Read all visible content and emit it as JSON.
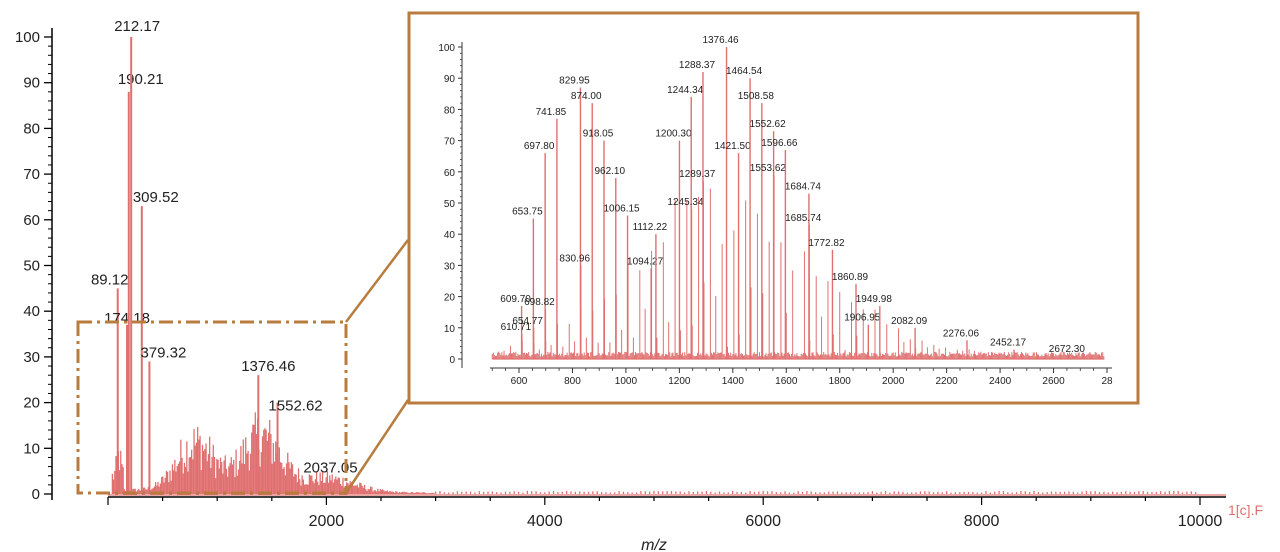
{
  "chart_data": [
    {
      "type": "line",
      "role": "main-spectrum",
      "title": "",
      "xlabel": "m/z",
      "ylabel": "",
      "xlim": [
        0,
        10000
      ],
      "ylim": [
        0,
        100
      ],
      "x_ticks": [
        "2000",
        "4000",
        "6000",
        "8000",
        "10000"
      ],
      "y_ticks": [
        "0",
        "10",
        "20",
        "30",
        "40",
        "50",
        "60",
        "70",
        "80",
        "90",
        "100"
      ],
      "trace_label": "1[c].F",
      "color": "#e07070",
      "grid": false,
      "peaks": [
        {
          "x": 89.12,
          "y": 45,
          "label": "89.12"
        },
        {
          "x": 174.18,
          "y": 37,
          "label": "174.18"
        },
        {
          "x": 190.21,
          "y": 88,
          "label": "190.21"
        },
        {
          "x": 212.17,
          "y": 100,
          "label": "212.17"
        },
        {
          "x": 309.52,
          "y": 63,
          "label": "309.52"
        },
        {
          "x": 379.32,
          "y": 29,
          "label": "379.32"
        },
        {
          "x": 1376.46,
          "y": 26,
          "label": "1376.46"
        },
        {
          "x": 1552.62,
          "y": 20,
          "label": "1552.62"
        },
        {
          "x": 2037.05,
          "y": 3,
          "label": "2037.05"
        }
      ],
      "annotations": [
        "zoom-box 0–2200 m/z, 0–37 intensity, linked to inset"
      ]
    },
    {
      "type": "line",
      "role": "inset-spectrum",
      "title": "",
      "xlabel": "",
      "ylabel": "",
      "xlim": [
        500,
        2800
      ],
      "ylim": [
        0,
        100
      ],
      "x_ticks": [
        "600",
        "800",
        "1000",
        "1200",
        "1400",
        "1600",
        "1800",
        "2000",
        "2200",
        "2400",
        "2600",
        "28"
      ],
      "y_ticks": [
        "0",
        "10",
        "20",
        "30",
        "40",
        "50",
        "60",
        "70",
        "80",
        "90",
        "100"
      ],
      "color": "#e07070",
      "grid": false,
      "peaks": [
        {
          "x": 609.7,
          "y": 17,
          "label": "609.70"
        },
        {
          "x": 610.71,
          "y": 8,
          "label": "610.71"
        },
        {
          "x": 653.75,
          "y": 45,
          "label": "653.75"
        },
        {
          "x": 654.77,
          "y": 10,
          "label": "654.77"
        },
        {
          "x": 697.8,
          "y": 66,
          "label": "697.80"
        },
        {
          "x": 698.82,
          "y": 16,
          "label": "698.82"
        },
        {
          "x": 741.85,
          "y": 77,
          "label": "741.85"
        },
        {
          "x": 829.95,
          "y": 87,
          "label": "829.95"
        },
        {
          "x": 830.96,
          "y": 30,
          "label": "830.96"
        },
        {
          "x": 874.0,
          "y": 82,
          "label": "874.00"
        },
        {
          "x": 918.05,
          "y": 70,
          "label": "918.05"
        },
        {
          "x": 962.1,
          "y": 58,
          "label": "962.10"
        },
        {
          "x": 1006.15,
          "y": 46,
          "label": "1006.15"
        },
        {
          "x": 1094.27,
          "y": 29,
          "label": "1094.27"
        },
        {
          "x": 1112.22,
          "y": 40,
          "label": "1112.22"
        },
        {
          "x": 1200.3,
          "y": 70,
          "label": "1200.30"
        },
        {
          "x": 1244.34,
          "y": 84,
          "label": "1244.34"
        },
        {
          "x": 1245.34,
          "y": 48,
          "label": "1245.34"
        },
        {
          "x": 1288.37,
          "y": 92,
          "label": "1288.37"
        },
        {
          "x": 1289.37,
          "y": 57,
          "label": "1289.37"
        },
        {
          "x": 1376.46,
          "y": 100,
          "label": "1376.46"
        },
        {
          "x": 1421.5,
          "y": 66,
          "label": "1421.50"
        },
        {
          "x": 1464.54,
          "y": 90,
          "label": "1464.54"
        },
        {
          "x": 1508.58,
          "y": 82,
          "label": "1508.58"
        },
        {
          "x": 1552.62,
          "y": 73,
          "label": "1552.62"
        },
        {
          "x": 1553.62,
          "y": 59,
          "label": "1553.62"
        },
        {
          "x": 1596.66,
          "y": 67,
          "label": "1596.66"
        },
        {
          "x": 1684.74,
          "y": 53,
          "label": "1684.74"
        },
        {
          "x": 1685.74,
          "y": 43,
          "label": "1685.74"
        },
        {
          "x": 1772.82,
          "y": 35,
          "label": "1772.82"
        },
        {
          "x": 1860.89,
          "y": 24,
          "label": "1860.89"
        },
        {
          "x": 1906.95,
          "y": 11,
          "label": "1906.95"
        },
        {
          "x": 1949.98,
          "y": 17,
          "label": "1949.98"
        },
        {
          "x": 2082.09,
          "y": 10,
          "label": "2082.09"
        },
        {
          "x": 2276.06,
          "y": 6,
          "label": "2276.06"
        },
        {
          "x": 2452.17,
          "y": 3,
          "label": "2452.17"
        },
        {
          "x": 2672.3,
          "y": 1,
          "label": "2672.30"
        }
      ]
    }
  ]
}
